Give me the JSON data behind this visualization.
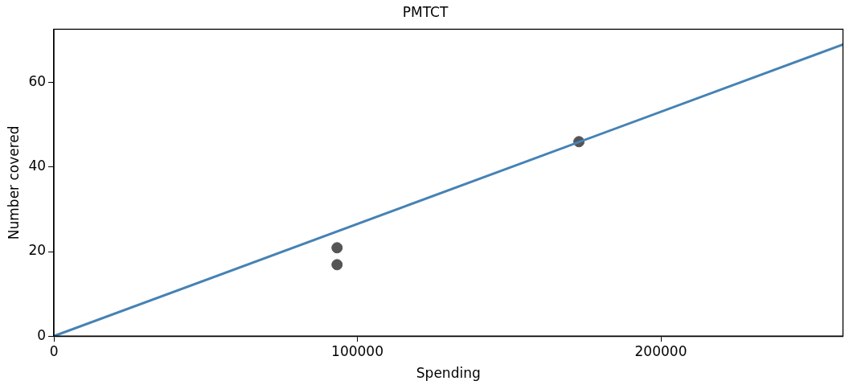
{
  "chart_data": {
    "type": "scatter",
    "title": "PMTCT",
    "xlabel": "Spending",
    "ylabel": "Number covered",
    "xlim": [
      0,
      260000
    ],
    "ylim": [
      0,
      72.6
    ],
    "xticks": [
      0,
      100000,
      200000
    ],
    "yticks": [
      0,
      20,
      40,
      60
    ],
    "grid": false,
    "legend": false,
    "series": [
      {
        "type": "line",
        "color": "#4682b4",
        "x": [
          0,
          260000
        ],
        "values": [
          0,
          69
        ],
        "marker": "none"
      },
      {
        "type": "scatter",
        "color": "#555555",
        "x": [
          93300,
          93300,
          173000
        ],
        "values": [
          20.9,
          16.9,
          46.0
        ],
        "marker": "circle"
      }
    ]
  }
}
